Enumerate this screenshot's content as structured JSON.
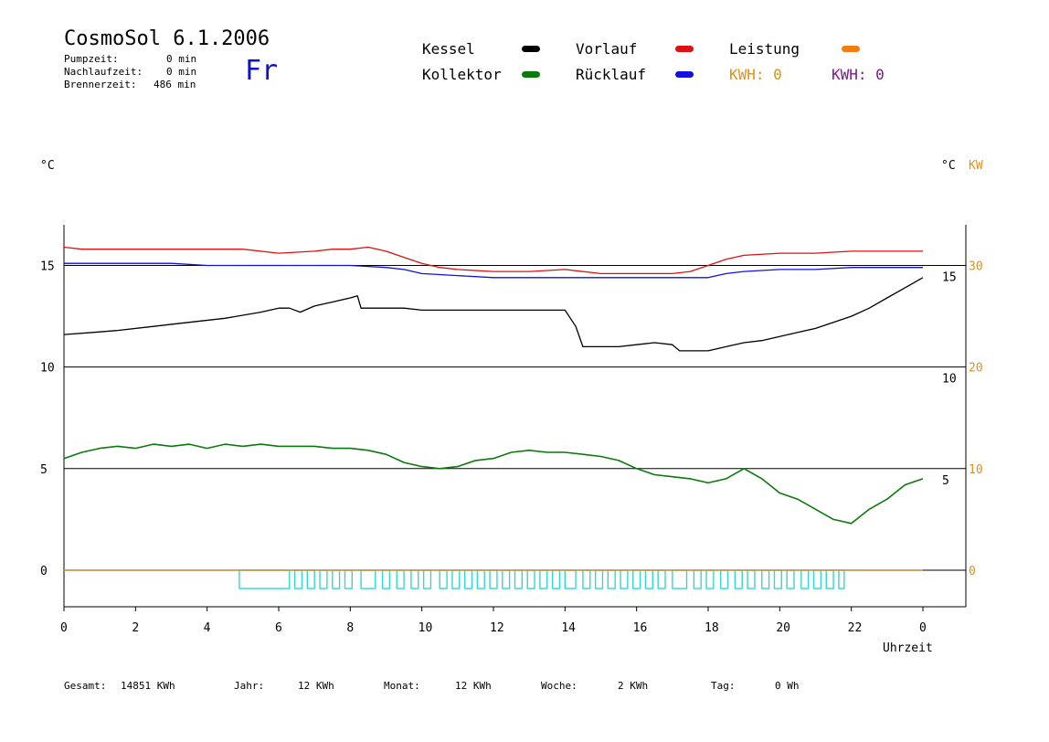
{
  "header": {
    "title": "CosmoSol 6.1.2006",
    "day": "Fr",
    "stats": [
      {
        "label": "Pumpzeit:",
        "value": "0 min"
      },
      {
        "label": "Nachlaufzeit:",
        "value": "0 min"
      },
      {
        "label": "Brennerzeit:",
        "value": "486 min"
      }
    ]
  },
  "legend": {
    "kessel": {
      "label": "Kessel",
      "color": "#000000"
    },
    "kollektor": {
      "label": "Kollektor",
      "color": "#0a7a0a"
    },
    "vorlauf": {
      "label": "Vorlauf",
      "color": "#dd1111"
    },
    "ruecklauf": {
      "label": "Rücklauf",
      "color": "#1111dd"
    },
    "leistung": {
      "label": "Leistung",
      "color": "#f07f10"
    },
    "kwh_orange": {
      "label": "KWH: 0",
      "color": "#e0901a"
    },
    "kwh_purple": {
      "label": "KWH: 0",
      "color": "#7a1a8a"
    }
  },
  "units": {
    "left": "°C",
    "right_c": "°C",
    "right_kw": "KW",
    "x": "Uhrzeit"
  },
  "footer": [
    {
      "label": "Gesamt:",
      "value": "14851 KWh"
    },
    {
      "label": "Jahr:",
      "value": "12 KWh"
    },
    {
      "label": "Monat:",
      "value": "12 KWh"
    },
    {
      "label": "Woche:",
      "value": "2 KWh"
    },
    {
      "label": "Tag:",
      "value": "0 Wh"
    }
  ],
  "chart_data": {
    "type": "line",
    "x_ticks": [
      "0",
      "2",
      "4",
      "6",
      "8",
      "10",
      "12",
      "14",
      "16",
      "18",
      "20",
      "22",
      "0"
    ],
    "xlabel": "Uhrzeit",
    "ylabel": "°C",
    "y_ticks_left": [
      "15",
      "10",
      "5",
      "0"
    ],
    "y_ticks_right_c": [
      "15",
      "10",
      "5"
    ],
    "y_ticks_right_kw": [
      "30",
      "20",
      "10",
      "0"
    ],
    "xlim": [
      0,
      24
    ],
    "ylim": [
      -1.8,
      17
    ],
    "ylim_right_kw": [
      -3.6,
      34
    ],
    "grid_y": [
      15,
      10,
      5,
      0
    ],
    "series": [
      {
        "name": "Vorlauf",
        "color": "#dd1111",
        "x": [
          0,
          0.5,
          1,
          2,
          3,
          4,
          5,
          6,
          7,
          7.5,
          8,
          8.5,
          9,
          9.5,
          10,
          10.5,
          11,
          12,
          13,
          14,
          15,
          16,
          16.5,
          17,
          17.5,
          18,
          18.5,
          19,
          20,
          21,
          22,
          23,
          24
        ],
        "values": [
          15.9,
          15.8,
          15.8,
          15.8,
          15.8,
          15.8,
          15.8,
          15.6,
          15.7,
          15.8,
          15.8,
          15.9,
          15.7,
          15.4,
          15.1,
          14.9,
          14.8,
          14.7,
          14.7,
          14.8,
          14.6,
          14.6,
          14.6,
          14.6,
          14.7,
          15.0,
          15.3,
          15.5,
          15.6,
          15.6,
          15.7,
          15.7,
          15.7
        ]
      },
      {
        "name": "Rücklauf",
        "color": "#1111dd",
        "x": [
          0,
          1,
          2,
          3,
          4,
          5,
          6,
          7,
          8,
          9,
          9.5,
          10,
          11,
          12,
          13,
          14,
          15,
          16,
          17,
          18,
          18.5,
          19,
          20,
          21,
          22,
          23,
          24
        ],
        "values": [
          15.1,
          15.1,
          15.1,
          15.1,
          15.0,
          15.0,
          15.0,
          15.0,
          15.0,
          14.9,
          14.8,
          14.6,
          14.5,
          14.4,
          14.4,
          14.4,
          14.4,
          14.4,
          14.4,
          14.4,
          14.6,
          14.7,
          14.8,
          14.8,
          14.9,
          14.9,
          14.9
        ]
      },
      {
        "name": "Kessel",
        "color": "#000000",
        "x": [
          0,
          0.8,
          1.5,
          2.5,
          3.5,
          4.5,
          5.5,
          6,
          6.3,
          6.6,
          7,
          7.5,
          8.0,
          8.2,
          8.3,
          9,
          9.5,
          10,
          11,
          12,
          13,
          14,
          14.3,
          14.5,
          15,
          15.5,
          16,
          16.5,
          17,
          17.2,
          17.5,
          18,
          18.5,
          19,
          19.5,
          20,
          20.5,
          21,
          21.5,
          22,
          22.5,
          23,
          23.5,
          24
        ],
        "values": [
          11.6,
          11.7,
          11.8,
          12.0,
          12.2,
          12.4,
          12.7,
          12.9,
          12.9,
          12.7,
          13.0,
          13.2,
          13.4,
          13.5,
          12.9,
          12.9,
          12.9,
          12.8,
          12.8,
          12.8,
          12.8,
          12.8,
          12.0,
          11.0,
          11.0,
          11.0,
          11.1,
          11.2,
          11.1,
          10.8,
          10.8,
          10.8,
          11.0,
          11.2,
          11.3,
          11.5,
          11.7,
          11.9,
          12.2,
          12.5,
          12.9,
          13.4,
          13.9,
          14.4
        ]
      },
      {
        "name": "Kollektor",
        "color": "#0a7a0a",
        "x": [
          0,
          0.5,
          1,
          1.5,
          2,
          2.5,
          3,
          3.5,
          4,
          4.5,
          5,
          5.5,
          6,
          6.5,
          7,
          7.5,
          8,
          8.5,
          9,
          9.5,
          10,
          10.5,
          11,
          11.5,
          12,
          12.5,
          13,
          13.5,
          14,
          14.5,
          15,
          15.5,
          16,
          16.5,
          17,
          17.5,
          18,
          18.5,
          19,
          19.5,
          20,
          20.5,
          21,
          21.5,
          22,
          22.5,
          23,
          23.5,
          24
        ],
        "values": [
          5.5,
          5.8,
          6.0,
          6.1,
          6.0,
          6.2,
          6.1,
          6.2,
          6.0,
          6.2,
          6.1,
          6.2,
          6.1,
          6.1,
          6.1,
          6.0,
          6.0,
          5.9,
          5.7,
          5.3,
          5.1,
          5.0,
          5.1,
          5.4,
          5.5,
          5.8,
          5.9,
          5.8,
          5.8,
          5.7,
          5.6,
          5.4,
          5.0,
          4.7,
          4.6,
          4.5,
          4.3,
          4.5,
          5.0,
          4.5,
          3.8,
          3.5,
          3.0,
          2.5,
          2.3,
          3.0,
          3.5,
          4.2,
          4.5
        ]
      },
      {
        "name": "Leistung",
        "color": "#f07f10",
        "x": [
          0,
          24
        ],
        "values": [
          0,
          0
        ]
      }
    ],
    "pump_cycles": {
      "color": "#33d6d6",
      "intervals": [
        [
          4.9,
          6.3
        ],
        [
          6.45,
          6.65
        ],
        [
          6.8,
          7.0
        ],
        [
          7.15,
          7.35
        ],
        [
          7.5,
          7.7
        ],
        [
          7.85,
          8.05
        ],
        [
          8.3,
          8.7
        ],
        [
          8.9,
          9.1
        ],
        [
          9.3,
          9.5
        ],
        [
          9.7,
          9.9
        ],
        [
          10.05,
          10.25
        ],
        [
          10.5,
          10.7
        ],
        [
          10.85,
          11.05
        ],
        [
          11.2,
          11.4
        ],
        [
          11.55,
          11.75
        ],
        [
          11.9,
          12.1
        ],
        [
          12.25,
          12.45
        ],
        [
          12.6,
          12.8
        ],
        [
          12.95,
          13.15
        ],
        [
          13.3,
          13.5
        ],
        [
          13.65,
          13.85
        ],
        [
          14.0,
          14.3
        ],
        [
          14.5,
          14.7
        ],
        [
          14.85,
          15.05
        ],
        [
          15.2,
          15.4
        ],
        [
          15.55,
          15.75
        ],
        [
          15.9,
          16.1
        ],
        [
          16.25,
          16.45
        ],
        [
          16.6,
          16.8
        ],
        [
          17.0,
          17.4
        ],
        [
          17.6,
          17.8
        ],
        [
          17.95,
          18.15
        ],
        [
          18.35,
          18.55
        ],
        [
          18.75,
          18.95
        ],
        [
          19.1,
          19.3
        ],
        [
          19.5,
          19.7
        ],
        [
          19.85,
          20.05
        ],
        [
          20.2,
          20.4
        ],
        [
          20.6,
          20.8
        ],
        [
          20.95,
          21.15
        ],
        [
          21.3,
          21.5
        ],
        [
          21.65,
          21.8
        ]
      ]
    }
  }
}
